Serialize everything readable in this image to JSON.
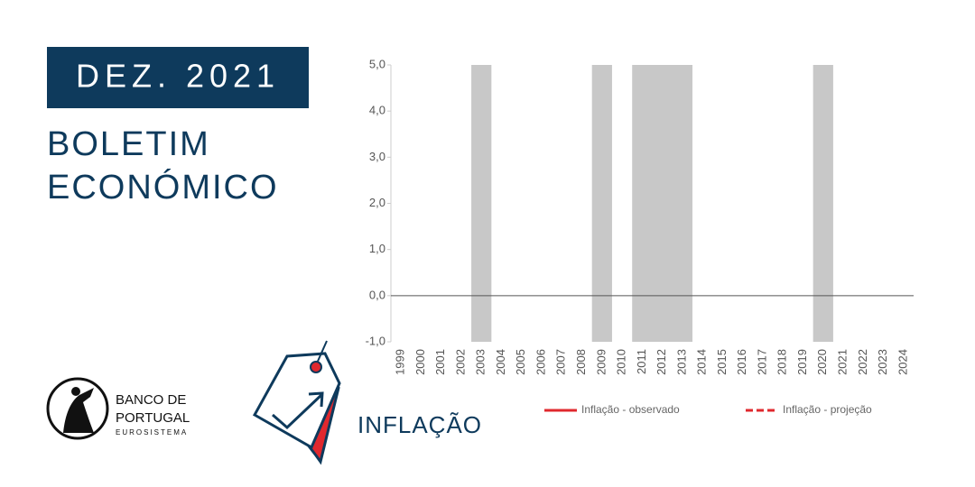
{
  "header": {
    "date": "DEZ. 2021",
    "title_lines": [
      "BOLETIM",
      "ECONÓMICO"
    ],
    "section": "INFLAÇÃO"
  },
  "logo": {
    "lines": [
      "BANCO DE",
      "PORTUGAL"
    ],
    "subtitle": "EUROSISTEMA"
  },
  "chart_data": {
    "type": "line",
    "categories": [
      "1999",
      "2000",
      "2001",
      "2002",
      "2003",
      "2004",
      "2005",
      "2006",
      "2007",
      "2008",
      "2009",
      "2010",
      "2011",
      "2012",
      "2013",
      "2014",
      "2015",
      "2016",
      "2017",
      "2018",
      "2019",
      "2020",
      "2021",
      "2022",
      "2023",
      "2024"
    ],
    "series": [
      {
        "name": "Inflação - observado",
        "color": "#e0282e",
        "dash": "solid"
      },
      {
        "name": "Inflação - projeção",
        "color": "#e0282e",
        "dash": "dashed"
      }
    ],
    "shaded_periods": [
      {
        "from": "2003",
        "to": "2003"
      },
      {
        "from": "2009",
        "to": "2009"
      },
      {
        "from": "2011",
        "to": "2013"
      },
      {
        "from": "2020",
        "to": "2020"
      }
    ],
    "shade_color": "#c8c8c8",
    "ylim": [
      -1,
      5
    ],
    "yticks": [
      {
        "value": -1,
        "label": "-1,0"
      },
      {
        "value": 0,
        "label": "0,0"
      },
      {
        "value": 1,
        "label": "1,0"
      },
      {
        "value": 2,
        "label": "2,0"
      },
      {
        "value": 3,
        "label": "3,0"
      },
      {
        "value": 4,
        "label": "4,0"
      },
      {
        "value": 5,
        "label": "5,0"
      }
    ]
  }
}
